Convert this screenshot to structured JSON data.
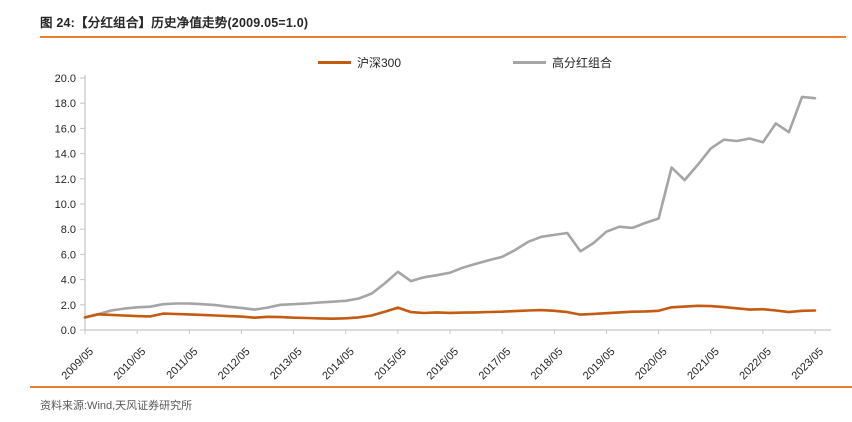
{
  "figure": {
    "title": "图 24:【分红组合】历史净值走势(2009.05=1.0)",
    "source": "资料来源:Wind,天风证券研究所"
  },
  "chart_data": {
    "type": "line",
    "title": "图 24:【分红组合】历史净值走势(2009.05=1.0)",
    "x_start": "2009/05",
    "x_end": "2023/05",
    "frequency": "quarterly",
    "x_tick_labels": [
      "2009/05",
      "2010/05",
      "2011/05",
      "2012/05",
      "2013/05",
      "2014/05",
      "2015/05",
      "2016/05",
      "2017/05",
      "2018/05",
      "2019/05",
      "2020/05",
      "2021/05",
      "2022/05",
      "2023/05"
    ],
    "y_tick_labels": [
      "0.0",
      "2.0",
      "4.0",
      "6.0",
      "8.0",
      "10.0",
      "12.0",
      "14.0",
      "16.0",
      "18.0",
      "20.0"
    ],
    "ylim": [
      0,
      20
    ],
    "grid": false,
    "legend_position": "top-center",
    "axis_color": "#C6C6C6",
    "text_color": "#262626",
    "series": [
      {
        "name": "沪深300",
        "data_name": "hs300-line",
        "color": "#C55A11",
        "values": [
          1.0,
          1.25,
          1.2,
          1.15,
          1.1,
          1.08,
          1.3,
          1.27,
          1.24,
          1.2,
          1.15,
          1.1,
          1.06,
          0.98,
          1.05,
          1.02,
          0.98,
          0.95,
          0.92,
          0.9,
          0.93,
          1.0,
          1.15,
          1.45,
          1.78,
          1.42,
          1.35,
          1.4,
          1.36,
          1.38,
          1.4,
          1.43,
          1.45,
          1.5,
          1.55,
          1.58,
          1.52,
          1.42,
          1.22,
          1.28,
          1.33,
          1.4,
          1.45,
          1.48,
          1.52,
          1.8,
          1.86,
          1.92,
          1.9,
          1.82,
          1.72,
          1.62,
          1.65,
          1.55,
          1.42,
          1.52,
          1.55
        ]
      },
      {
        "name": "高分红组合",
        "data_name": "high-dividend-portfolio-line",
        "color": "#A5A5A5",
        "values": [
          1.0,
          1.25,
          1.55,
          1.7,
          1.8,
          1.85,
          2.05,
          2.1,
          2.1,
          2.05,
          1.98,
          1.85,
          1.75,
          1.62,
          1.78,
          2.0,
          2.05,
          2.1,
          2.18,
          2.25,
          2.32,
          2.5,
          2.9,
          3.7,
          4.62,
          3.88,
          4.18,
          4.35,
          4.55,
          4.95,
          5.25,
          5.55,
          5.8,
          6.35,
          7.0,
          7.4,
          7.55,
          7.7,
          6.25,
          6.9,
          7.8,
          8.2,
          8.1,
          8.5,
          8.85,
          12.9,
          11.9,
          13.1,
          14.4,
          15.1,
          15.0,
          15.2,
          14.9,
          16.4,
          15.7,
          18.5,
          18.4
        ]
      }
    ]
  },
  "colors": {
    "accent_rule": "#ED7D31",
    "hs300_line": "#C55A11",
    "dividend_line": "#A5A5A5",
    "source_text": "#595959"
  }
}
